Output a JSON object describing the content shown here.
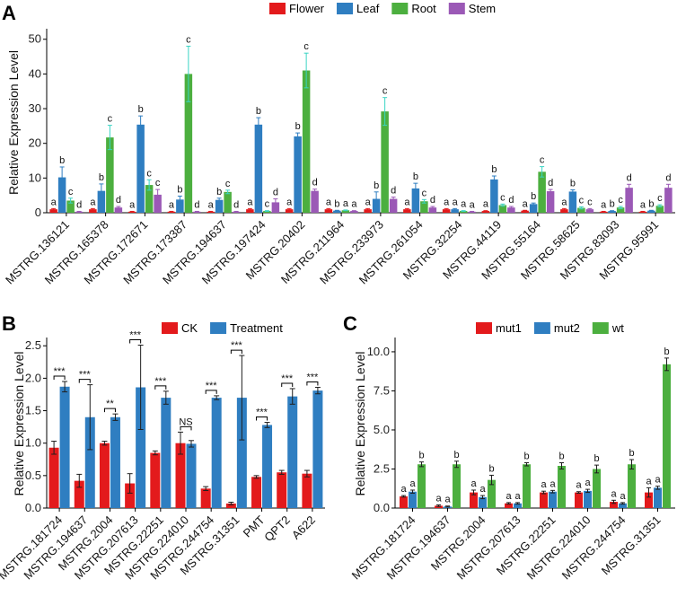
{
  "colors": {
    "flower": "#e31a1c",
    "leaf": "#2f7ec1",
    "root": "#4caf3f",
    "stem": "#9b59b6",
    "ck": "#e31a1c",
    "treatment": "#2f7ec1",
    "mut1": "#e31a1c",
    "mut2": "#2f7ec1",
    "wt": "#4caf3f",
    "error_A_B": "#1f1f1f",
    "error_leaf": "#2f7ec1",
    "error_root": "#3ad4c4",
    "error_stem": "#9b59b6"
  },
  "chart_data": [
    {
      "panel": "A",
      "type": "bar",
      "title": "",
      "xlabel": "",
      "ylabel": "Relative Expression Level",
      "ylim": [
        0,
        52
      ],
      "yticks": [
        0,
        10,
        20,
        30,
        40,
        50
      ],
      "legend": [
        "Flower",
        "Leaf",
        "Root",
        "Stem"
      ],
      "legend_position": "top",
      "categories": [
        "MSTRG.136121",
        "MSTRG.165378",
        "MSTRG.172671",
        "MSTRG.173387",
        "MSTRG.194637",
        "MSTRG.197424",
        "MSTRG.20402",
        "MSTRG.211964",
        "MSTRG.233973",
        "MSTRG.261054",
        "MSTRG.32254",
        "MSTRG.44119",
        "MSTRG.55164",
        "MSTRG.58625",
        "MSTRG.83093",
        "MSTRG.95991"
      ],
      "series": [
        {
          "name": "Flower",
          "values": [
            1,
            1,
            0.3,
            0.3,
            0.3,
            1,
            1,
            1,
            1,
            1,
            1,
            0.5,
            0.6,
            1,
            0.3,
            0.3
          ],
          "errors": [
            0.2,
            0.2,
            0.1,
            0.1,
            0.1,
            0.2,
            0.2,
            0.2,
            0.2,
            0.2,
            0.2,
            0.1,
            0.1,
            0.2,
            0.1,
            0.1
          ],
          "letters": [
            "a",
            "a",
            "a",
            "a",
            "a",
            "a",
            "a",
            "a",
            "a",
            "a",
            "a",
            "a",
            "a",
            "a",
            "a",
            "a"
          ]
        },
        {
          "name": "Leaf",
          "values": [
            10.2,
            6.3,
            25.4,
            3.8,
            3.7,
            25.4,
            22,
            0.6,
            4,
            7,
            1,
            9.6,
            2.5,
            6.1,
            0.5,
            0.6
          ],
          "errors": [
            3,
            2,
            2.5,
            1,
            0.5,
            2,
            1,
            0.1,
            2,
            1.5,
            0.2,
            1,
            0.3,
            0.5,
            0.1,
            0.1
          ],
          "letters": [
            "b",
            "b",
            "b",
            "b",
            "b",
            "b",
            "b",
            "b",
            "b",
            "b",
            "a",
            "b",
            "b",
            "b",
            "b",
            "b"
          ]
        },
        {
          "name": "Root",
          "values": [
            3.5,
            21.7,
            8,
            40,
            6,
            0.5,
            41,
            0.7,
            29.2,
            3.3,
            0.5,
            2.2,
            11.8,
            1.4,
            1.5,
            2
          ],
          "errors": [
            0.7,
            3.5,
            1.5,
            8,
            0.5,
            0.1,
            5,
            0.1,
            4,
            0.5,
            0.1,
            0.3,
            1.5,
            0.3,
            0.3,
            0.3
          ],
          "letters": [
            "c",
            "c",
            "c",
            "c",
            "c",
            "c",
            "c",
            "a",
            "c",
            "c",
            "a",
            "c",
            "c",
            "c",
            "c",
            "c"
          ]
        },
        {
          "name": "Stem",
          "values": [
            0.3,
            1.5,
            5.2,
            0.3,
            0.3,
            3,
            6.3,
            0.5,
            4,
            1.5,
            0.3,
            1.5,
            6.2,
            1,
            7.2,
            7.2
          ],
          "errors": [
            0.1,
            0.3,
            1.5,
            0.1,
            0.1,
            1,
            0.5,
            0.1,
            0.5,
            0.3,
            0.1,
            0.3,
            0.5,
            0.2,
            1,
            1
          ],
          "letters": [
            "d",
            "d",
            "c",
            "d",
            "d",
            "d",
            "d",
            "a",
            "d",
            "d",
            "a",
            "d",
            "d",
            "c",
            "d",
            "d"
          ]
        }
      ]
    },
    {
      "panel": "B",
      "type": "bar",
      "title": "",
      "xlabel": "",
      "ylabel": "Relative Expression Level",
      "ylim": [
        0,
        2.6
      ],
      "yticks": [
        "0.0",
        "0.5",
        "1.0",
        "1.5",
        "2.0",
        "2.5"
      ],
      "legend": [
        "CK",
        "Treatment"
      ],
      "legend_position": "top",
      "categories": [
        "MSTRG.181724",
        "MSTRG.194637",
        "MSTRG.2004",
        "MSTRG.207613",
        "MSTRG.22251",
        "MSTRG.224010",
        "MSTRG.244754",
        "MSTRG.31351",
        "PMT",
        "QPT2",
        "A622"
      ],
      "series": [
        {
          "name": "CK",
          "values": [
            0.93,
            0.42,
            1.0,
            0.38,
            0.85,
            1.0,
            0.3,
            0.07,
            0.48,
            0.55,
            0.53
          ],
          "errors": [
            0.1,
            0.1,
            0.03,
            0.15,
            0.03,
            0.17,
            0.03,
            0.02,
            0.02,
            0.03,
            0.05
          ]
        },
        {
          "name": "Treatment",
          "values": [
            1.87,
            1.4,
            1.4,
            1.86,
            1.7,
            0.99,
            1.7,
            1.7,
            1.28,
            1.72,
            1.81
          ]
        }
      ],
      "treatment_errors": [
        0.08,
        0.5,
        0.05,
        0.65,
        0.1,
        0.05,
        0.03,
        0.65,
        0.04,
        0.12,
        0.05
      ],
      "significance": [
        "***",
        "***",
        "**",
        "***",
        "***",
        "NS",
        "***",
        "***",
        "***",
        "***",
        "***"
      ]
    },
    {
      "panel": "C",
      "type": "bar",
      "title": "",
      "xlabel": "",
      "ylabel": "Relative Expression Level",
      "ylim": [
        0,
        10.8
      ],
      "yticks": [
        "0.0",
        "2.5",
        "5.0",
        "7.5",
        "10.0"
      ],
      "legend": [
        "mut1",
        "mut2",
        "wt"
      ],
      "legend_position": "top",
      "categories": [
        "MSTRG.181724",
        "MSTRG.194637",
        "MSTRG.2004",
        "MSTRG.207613",
        "MSTRG.22251",
        "MSTRG.224010",
        "MSTRG.244754",
        "MSTRG.31351"
      ],
      "series": [
        {
          "name": "mut1",
          "values": [
            0.75,
            0.15,
            1.0,
            0.3,
            1.0,
            1.0,
            0.4,
            1.0
          ],
          "errors": [
            0.05,
            0.05,
            0.15,
            0.05,
            0.08,
            0.05,
            0.1,
            0.3
          ],
          "letters": [
            "a",
            "a",
            "a",
            "a",
            "a",
            "a",
            "a",
            "a"
          ]
        },
        {
          "name": "mut2",
          "values": [
            1.05,
            0.1,
            0.7,
            0.3,
            1.05,
            1.1,
            0.3,
            1.3
          ],
          "errors": [
            0.1,
            0.03,
            0.1,
            0.05,
            0.08,
            0.1,
            0.05,
            0.1
          ],
          "letters": [
            "a",
            "a",
            "a",
            "a",
            "a",
            "a",
            "a",
            "a"
          ]
        },
        {
          "name": "wt",
          "values": [
            2.8,
            2.8,
            1.8,
            2.8,
            2.7,
            2.5,
            2.8,
            9.2
          ],
          "errors": [
            0.15,
            0.2,
            0.3,
            0.1,
            0.2,
            0.25,
            0.3,
            0.4
          ],
          "letters": [
            "b",
            "b",
            "b",
            "b",
            "b",
            "b",
            "b",
            "b"
          ]
        }
      ]
    }
  ]
}
